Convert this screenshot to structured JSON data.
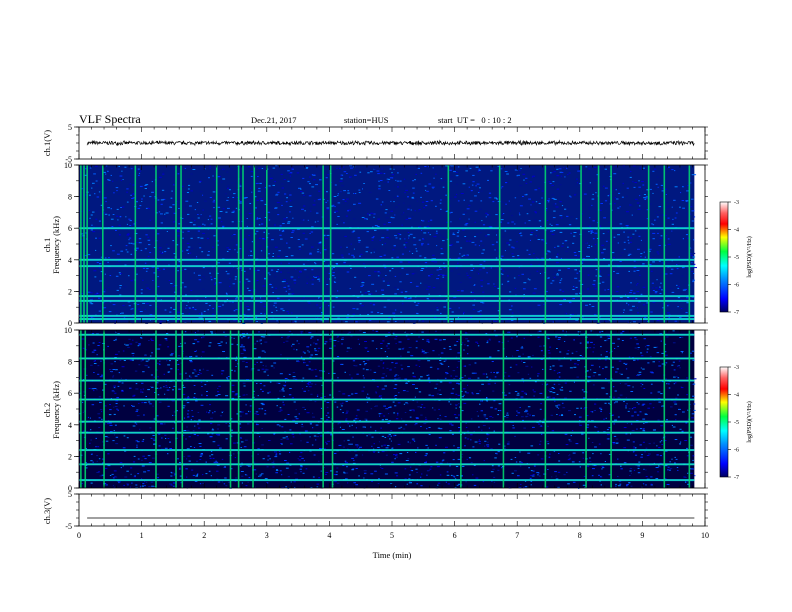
{
  "header": {
    "title": "VLF Spectra",
    "date": "Dec.21, 2017",
    "station": "station=HUS",
    "start_ut": "start  UT =   0 : 10 : 2"
  },
  "colors": {
    "background": "#ffffff",
    "trace": "#000000",
    "colorbar_stops": [
      "#000060",
      "#0000ff",
      "#0090ff",
      "#00ffff",
      "#00ff40",
      "#ffff00",
      "#ff0000",
      "#ff6060",
      "#ffffff"
    ]
  },
  "chart_data": [
    {
      "type": "line",
      "panel": "ch1-waveform",
      "ylabel": "ch.1(V)",
      "ylim": [
        -5,
        5
      ],
      "yticks": [
        "5",
        "-5"
      ],
      "description_values": {
        "baseline_V": 0,
        "noise_amplitude_V": 0.6
      }
    },
    {
      "type": "heatmap",
      "panel": "ch1-spectrogram",
      "ylabel_line1": "ch.1",
      "ylabel_line2": "Frequency (kHz)",
      "ylim_kHz": [
        0,
        10
      ],
      "yticks": [
        "0",
        "2",
        "4",
        "6",
        "8",
        "10"
      ],
      "band_lines_kHz": [
        0.25,
        0.45,
        1.4,
        1.7,
        3.6,
        4.0,
        6.0
      ],
      "burst_times_min": [
        0.03,
        0.08,
        0.13,
        0.38,
        0.9,
        1.23,
        1.55,
        1.63,
        2.2,
        2.55,
        2.62,
        2.8,
        3.0,
        3.9,
        4.02,
        5.9,
        6.72,
        7.45,
        8.02,
        8.3,
        8.5,
        9.1,
        9.35,
        9.75
      ]
    },
    {
      "type": "heatmap",
      "panel": "ch2-spectrogram",
      "ylabel_line1": "ch.2",
      "ylabel_line2": "Frequency (kHz)",
      "ylim_kHz": [
        0,
        10
      ],
      "yticks": [
        "0",
        "2",
        "4",
        "6",
        "8",
        "10"
      ],
      "band_lines_kHz": [
        0.5,
        1.5,
        2.4,
        3.5,
        4.2,
        5.6,
        6.8,
        8.2,
        9.7
      ],
      "burst_times_min": [
        0.03,
        0.1,
        0.4,
        1.23,
        1.55,
        1.65,
        2.42,
        2.55,
        2.78,
        3.9,
        4.05,
        6.1,
        6.78,
        7.45,
        8.1,
        8.5,
        9.35,
        9.75
      ]
    },
    {
      "type": "line",
      "panel": "ch3-waveform",
      "ylabel": "ch.3(V)",
      "ylim": [
        -5,
        5
      ],
      "yticks": [
        "5",
        "-5"
      ],
      "description_values": {
        "baseline_V": -2.5
      }
    }
  ],
  "x_axis": {
    "label": "Time (min)",
    "xlim": [
      0,
      10
    ],
    "data_end_min": 9.83,
    "ticks": [
      "0",
      "1",
      "2",
      "3",
      "4",
      "5",
      "6",
      "7",
      "8",
      "9",
      "10"
    ]
  },
  "colorbars": [
    {
      "label": "log(PSD)(V²/Hz)",
      "ticks": [
        "-3",
        "-4",
        "-5",
        "-6",
        "-7"
      ],
      "range": [
        -7,
        -3
      ]
    },
    {
      "label": "log(PSD)(V²/Hz)",
      "ticks": [
        "-3",
        "-4",
        "-5",
        "-6",
        "-7"
      ],
      "range": [
        -7,
        -3
      ]
    }
  ]
}
